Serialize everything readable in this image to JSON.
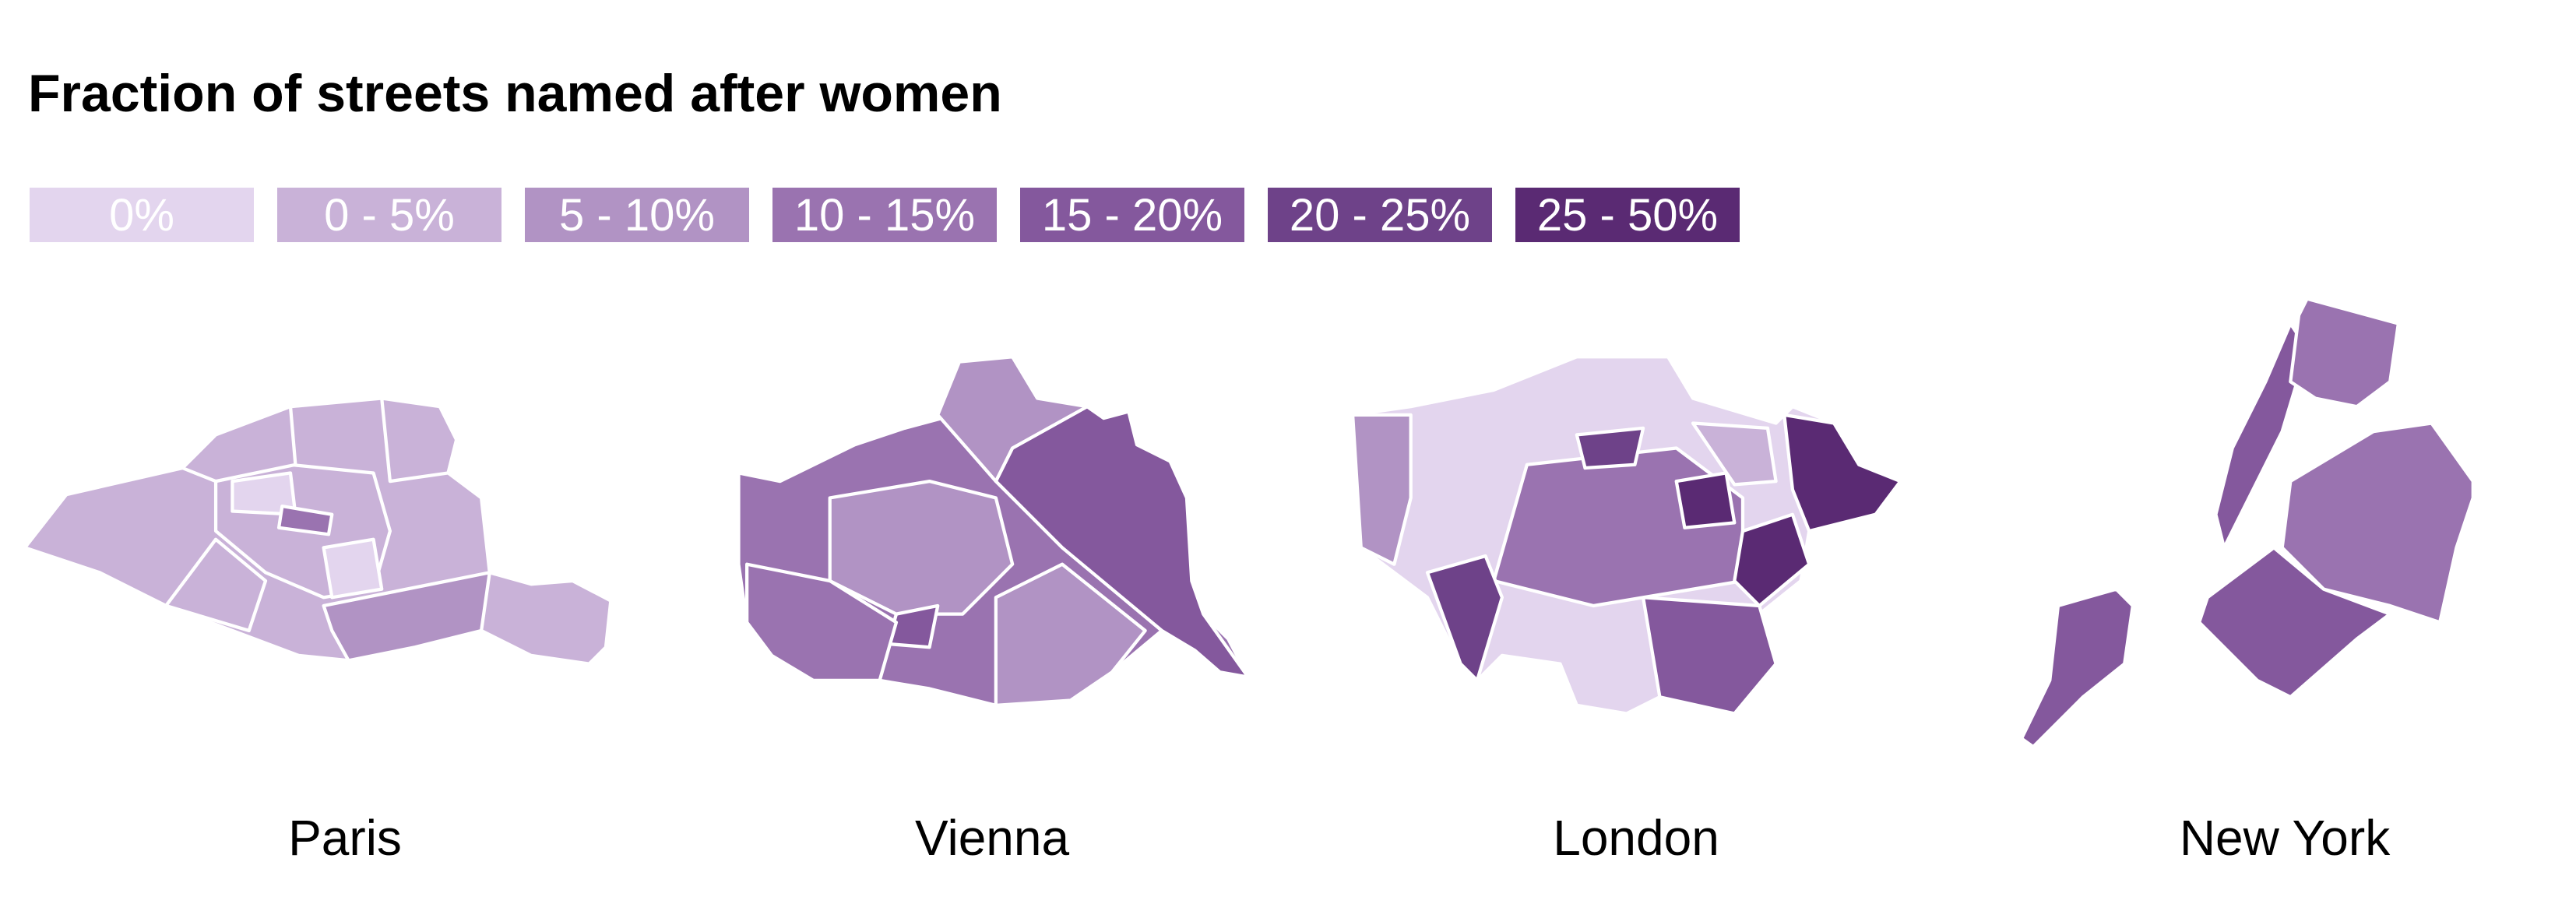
{
  "title": "Fraction of streets named after women",
  "legend": [
    {
      "label": "0%",
      "color": "#e3d5ee"
    },
    {
      "label": "0 - 5%",
      "color": "#c9b2d8"
    },
    {
      "label": "5 - 10%",
      "color": "#b193c4"
    },
    {
      "label": "10 - 15%",
      "color": "#9a73b0"
    },
    {
      "label": "15 - 20%",
      "color": "#84589d"
    },
    {
      "label": "20 - 25%",
      "color": "#6e4289"
    },
    {
      "label": "25 - 50%",
      "color": "#5a2a73"
    }
  ],
  "cities": [
    "Paris",
    "Vienna",
    "London",
    "New York"
  ]
}
